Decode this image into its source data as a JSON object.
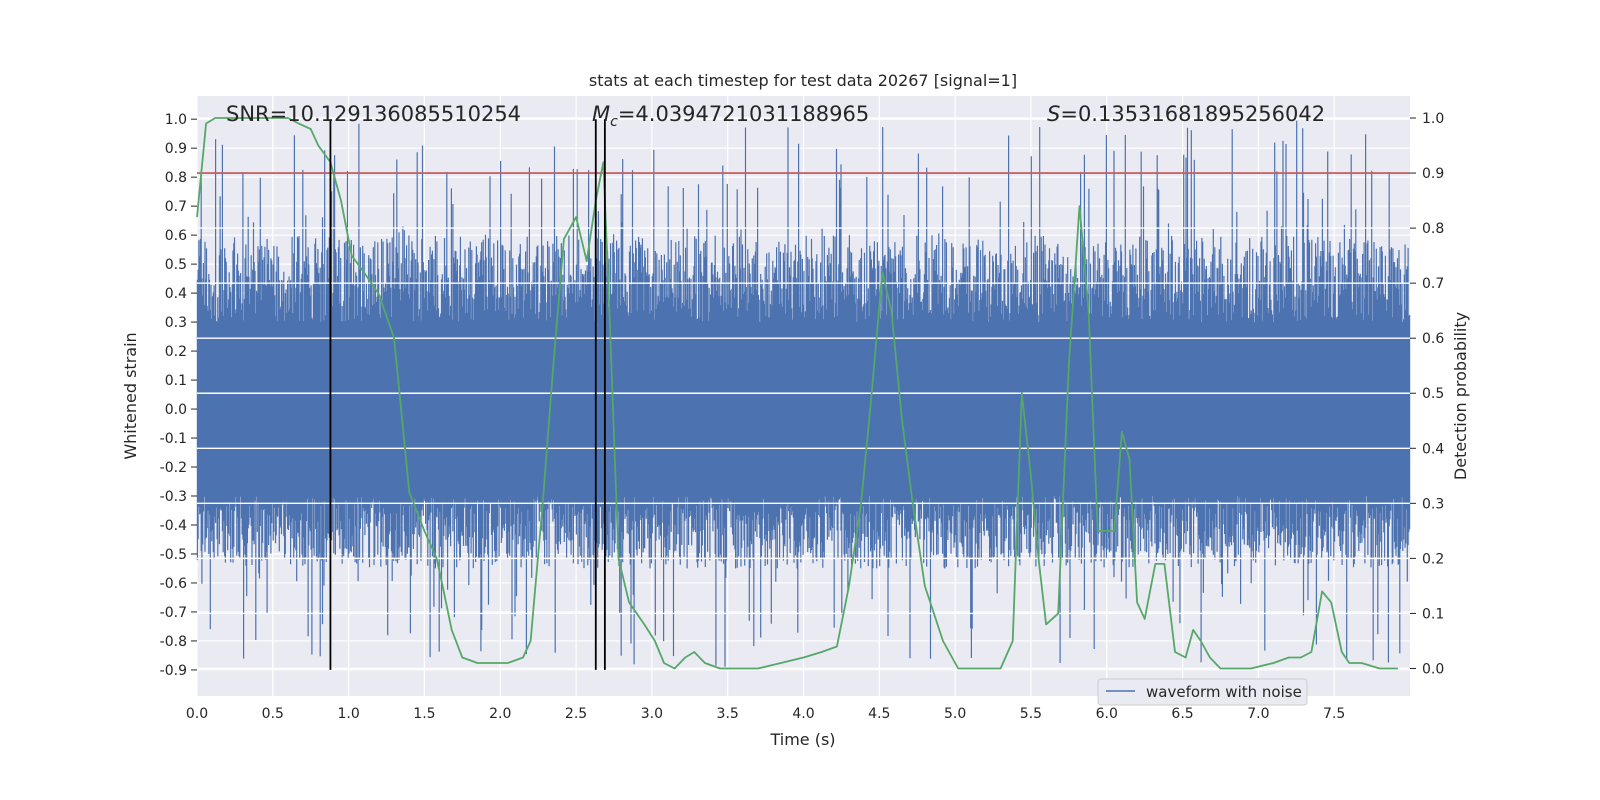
{
  "chart_data": {
    "type": "line",
    "title": "stats at each timestep for test data 20267 [signal=1]",
    "xlabel": "Time (s)",
    "ylabel": "Whitened strain",
    "ylabel_right": "Detection probability",
    "xlim": [
      0.0,
      8.0
    ],
    "ylim": [
      -0.99,
      1.08
    ],
    "ylim_right": [
      -0.05,
      1.04
    ],
    "x_ticks": [
      "0.0",
      "0.5",
      "1.0",
      "1.5",
      "2.0",
      "2.5",
      "3.0",
      "3.5",
      "4.0",
      "4.5",
      "5.0",
      "5.5",
      "6.0",
      "6.5",
      "7.0",
      "7.5"
    ],
    "y_ticks": [
      "1.0",
      "0.9",
      "0.8",
      "0.7",
      "0.6",
      "0.5",
      "0.4",
      "0.3",
      "0.2",
      "0.1",
      "0.0",
      "-0.1",
      "-0.2",
      "-0.3",
      "-0.4",
      "-0.5",
      "-0.6",
      "-0.7",
      "-0.8",
      "-0.9"
    ],
    "y_right_ticks": [
      "1.0",
      "0.9",
      "0.8",
      "0.7",
      "0.6",
      "0.5",
      "0.4",
      "0.3",
      "0.2",
      "0.1",
      "0.0"
    ],
    "threshold": {
      "value": 0.9,
      "axis": "right",
      "color": "#c44e52"
    },
    "vlines": [
      {
        "x": 0.88,
        "ymin": -0.9,
        "ymax": 1.0
      },
      {
        "x": 2.63,
        "ymin": -0.9,
        "ymax": 1.0
      },
      {
        "x": 2.69,
        "ymin": -0.9,
        "ymax": 1.0
      }
    ],
    "stats": {
      "snr": "SNR=10.129136085510254",
      "mc_symbol": "M",
      "mc_sub": "c",
      "mc_value": "=4.0394721031188965",
      "s_symbol": "S",
      "s_value": "=0.13531681895256042"
    },
    "series": [
      {
        "name": "waveform with noise",
        "color": "#4c72b0",
        "kind": "noise",
        "envelope": {
          "core": 0.3,
          "typical_max": 0.6,
          "outlier_max": 1.0,
          "typical_min": -0.55,
          "outlier_min": -0.9
        }
      },
      {
        "name": "detection probability",
        "color": "#55a868",
        "axis": "right",
        "x": [
          0.0,
          0.06,
          0.12,
          0.2,
          0.3,
          0.4,
          0.5,
          0.6,
          0.67,
          0.75,
          0.8,
          0.88,
          0.95,
          1.02,
          1.1,
          1.2,
          1.3,
          1.4,
          1.5,
          1.58,
          1.62,
          1.68,
          1.75,
          1.85,
          1.95,
          2.05,
          2.15,
          2.2,
          2.28,
          2.35,
          2.42,
          2.5,
          2.57,
          2.63,
          2.68,
          2.72,
          2.78,
          2.85,
          2.95,
          3.02,
          3.08,
          3.15,
          3.22,
          3.28,
          3.35,
          3.45,
          3.55,
          3.7,
          3.85,
          4.0,
          4.12,
          4.22,
          4.3,
          4.38,
          4.45,
          4.52,
          4.58,
          4.65,
          4.72,
          4.8,
          4.92,
          5.02,
          5.2,
          5.3,
          5.38,
          5.44,
          5.5,
          5.55,
          5.6,
          5.68,
          5.75,
          5.82,
          5.88,
          5.94,
          6.0,
          6.05,
          6.1,
          6.15,
          6.2,
          6.25,
          6.32,
          6.38,
          6.45,
          6.52,
          6.57,
          6.62,
          6.68,
          6.75,
          6.82,
          6.95,
          7.1,
          7.2,
          7.28,
          7.35,
          7.42,
          7.48,
          7.55,
          7.6,
          7.68,
          7.8,
          7.92
        ],
        "y": [
          0.82,
          0.99,
          1.0,
          1.0,
          1.0,
          1.0,
          1.0,
          1.0,
          0.99,
          0.98,
          0.95,
          0.92,
          0.85,
          0.75,
          0.72,
          0.68,
          0.6,
          0.32,
          0.25,
          0.2,
          0.15,
          0.07,
          0.02,
          0.01,
          0.01,
          0.01,
          0.02,
          0.05,
          0.3,
          0.55,
          0.78,
          0.82,
          0.74,
          0.85,
          0.92,
          0.65,
          0.2,
          0.12,
          0.08,
          0.05,
          0.01,
          0.0,
          0.02,
          0.03,
          0.01,
          0.0,
          0.0,
          0.0,
          0.01,
          0.02,
          0.03,
          0.04,
          0.15,
          0.3,
          0.5,
          0.72,
          0.65,
          0.45,
          0.3,
          0.15,
          0.05,
          0.0,
          0.0,
          0.0,
          0.05,
          0.5,
          0.35,
          0.2,
          0.08,
          0.1,
          0.55,
          0.84,
          0.65,
          0.25,
          0.25,
          0.25,
          0.43,
          0.38,
          0.12,
          0.09,
          0.19,
          0.19,
          0.03,
          0.02,
          0.07,
          0.05,
          0.02,
          0.0,
          0.0,
          0.0,
          0.01,
          0.02,
          0.02,
          0.03,
          0.14,
          0.12,
          0.03,
          0.01,
          0.01,
          0.0,
          0.0
        ]
      }
    ],
    "legend": {
      "label": "waveform with noise",
      "placement": "lower-right"
    }
  }
}
